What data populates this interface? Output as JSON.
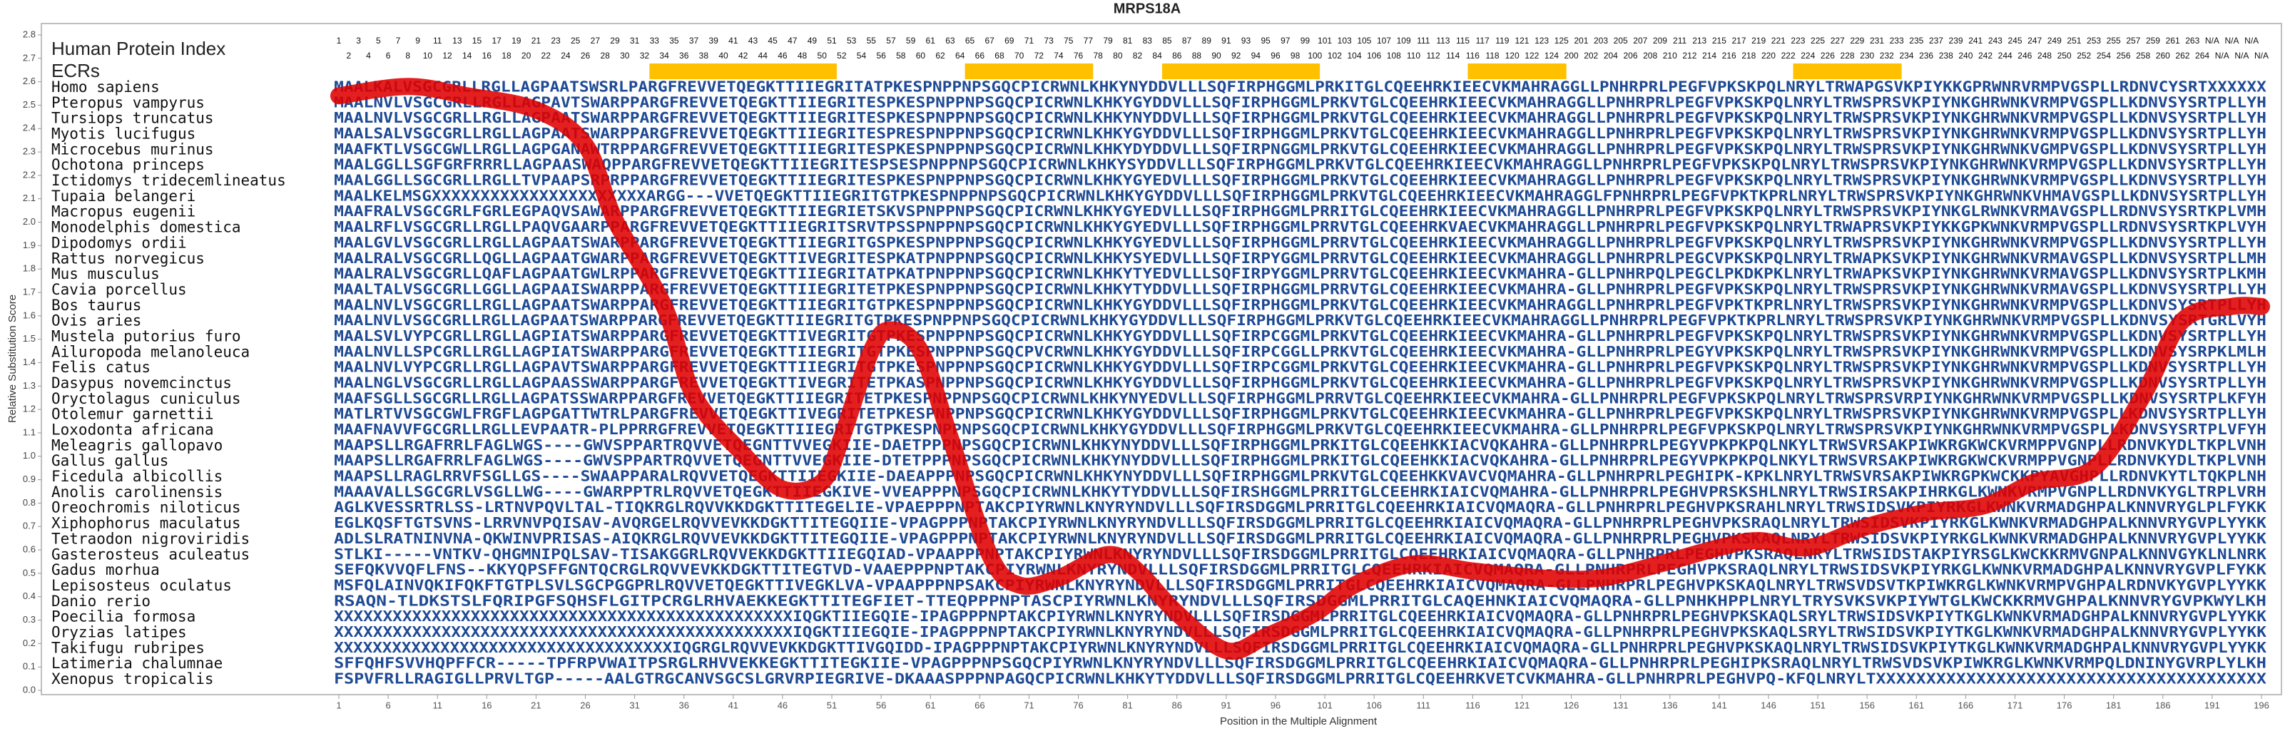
{
  "chart_data": {
    "type": "line",
    "title": "MRPS18A",
    "ylabel": "Relative Substitution Score",
    "xlabel": "Position in the Multiple Alignment",
    "index_label": "Human Protein Index",
    "ecr_label": "ECRs",
    "color": "#e00000",
    "ecr_color": "#ffc000",
    "xlim": [
      1,
      196
    ],
    "ylim": [
      0,
      2.8
    ],
    "xticks": [
      1,
      6,
      11,
      16,
      21,
      26,
      31,
      36,
      41,
      46,
      51,
      56,
      61,
      66,
      71,
      76,
      81,
      86,
      91,
      96,
      101,
      106,
      111,
      116,
      121,
      126,
      131,
      136,
      141,
      146,
      151,
      156,
      161,
      166,
      171,
      176,
      181,
      186,
      191,
      196
    ],
    "yticks": [
      {
        "value": 0,
        "label": "0.0"
      },
      0.1,
      0.2,
      0.3,
      0.4,
      0.5,
      0.6,
      0.7,
      0.8,
      0.9,
      {
        "value": 1,
        "label": "1.0"
      },
      1.1,
      1.2,
      1.3,
      1.4,
      1.5,
      1.6,
      1.7,
      1.8,
      1.9,
      {
        "value": 2,
        "label": "2.0"
      },
      2.1,
      2.2,
      2.3,
      2.4,
      2.5,
      2.6,
      2.7,
      2.8
    ],
    "x": [
      1,
      8,
      14,
      21,
      26,
      29,
      34,
      37,
      42,
      46,
      50,
      52,
      55,
      57,
      60,
      63,
      67,
      70,
      74,
      79,
      82,
      86,
      91,
      95,
      100,
      104,
      110,
      116,
      123,
      129,
      135,
      141,
      145,
      150,
      156,
      162,
      168,
      173,
      179,
      184,
      188,
      193,
      196
    ],
    "values": [
      2.54,
      2.58,
      2.54,
      2.48,
      2.33,
      2.01,
      1.64,
      1.26,
      1.01,
      0.86,
      0.89,
      1.08,
      1.45,
      1.54,
      1.45,
      1.08,
      0.58,
      0.45,
      0.48,
      0.58,
      0.51,
      0.33,
      0.17,
      0.23,
      0.33,
      0.45,
      0.54,
      0.51,
      0.48,
      0.48,
      0.54,
      0.61,
      0.64,
      0.61,
      0.7,
      0.76,
      0.79,
      0.89,
      0.95,
      1.26,
      1.58,
      1.64,
      1.64
    ],
    "ecrs": [
      {
        "start": 33,
        "end": 51
      },
      {
        "start": 65,
        "end": 77
      },
      {
        "start": 85,
        "end": 100
      },
      {
        "start": 116,
        "end": 125
      },
      {
        "start": 149,
        "end": 159
      }
    ],
    "human_index": [
      1,
      2,
      3,
      4,
      5,
      6,
      7,
      8,
      9,
      10,
      11,
      12,
      13,
      14,
      15,
      16,
      17,
      18,
      19,
      20,
      21,
      22,
      23,
      24,
      25,
      26,
      27,
      28,
      29,
      30,
      31,
      32,
      33,
      34,
      35,
      36,
      37,
      38,
      39,
      40,
      41,
      42,
      43,
      44,
      45,
      46,
      47,
      48,
      49,
      50,
      51,
      52,
      53,
      54,
      55,
      56,
      57,
      58,
      59,
      60,
      61,
      62,
      63,
      64,
      65,
      66,
      67,
      68,
      69,
      70,
      71,
      72,
      73,
      74,
      75,
      76,
      77,
      78,
      79,
      80,
      81,
      82,
      83,
      84,
      85,
      86,
      87,
      88,
      89,
      90,
      91,
      92,
      93,
      94,
      95,
      96,
      97,
      98,
      99,
      100,
      101,
      102,
      103,
      104,
      105,
      106,
      107,
      108,
      109,
      110,
      111,
      112,
      113,
      114,
      115,
      116,
      117,
      118,
      119,
      120,
      121,
      122,
      123,
      124,
      125,
      200,
      201,
      202,
      203,
      204,
      205,
      206,
      207,
      208,
      209,
      210,
      211,
      212,
      213,
      214,
      215,
      216,
      217,
      218,
      219,
      220,
      221,
      222,
      223,
      224,
      225,
      226,
      227,
      228,
      229,
      230,
      231,
      232,
      233,
      234,
      235,
      236,
      237,
      238,
      239,
      240,
      241,
      242,
      243,
      244,
      245,
      246,
      247,
      248,
      249,
      250,
      251,
      252,
      253,
      254,
      255,
      256,
      257,
      258,
      259,
      260,
      261,
      262,
      263,
      264,
      "N/A",
      "N/A",
      "N/A",
      "N/A",
      "N/A",
      "N/A"
    ],
    "species": [
      "Homo sapiens",
      "Pteropus vampyrus",
      "Tursiops truncatus",
      "Myotis lucifugus",
      "Microcebus murinus",
      "Ochotona princeps",
      "Ictidomys tridecemlineatus",
      "Tupaia belangeri",
      "Macropus eugenii",
      "Monodelphis domestica",
      "Dipodomys ordii",
      "Rattus norvegicus",
      "Mus musculus",
      "Cavia porcellus",
      "Bos taurus",
      "Ovis aries",
      "Mustela putorius furo",
      "Ailuropoda melanoleuca",
      "Felis catus",
      "Dasypus novemcinctus",
      "Oryctolagus cuniculus",
      "Otolemur garnettii",
      "Loxodonta africana",
      "Meleagris gallopavo",
      "Gallus gallus",
      "Ficedula albicollis",
      "Anolis carolinensis",
      "Oreochromis niloticus",
      "Xiphophorus maculatus",
      "Tetraodon nigroviridis",
      "Gasterosteus aculeatus",
      "Gadus morhua",
      "Lepisosteus oculatus",
      "Danio rerio",
      "Poecilia formosa",
      "Oryzias latipes",
      "Takifugu rubripes",
      "Latimeria chalumnae",
      "Xenopus tropicalis"
    ],
    "sequences": [
      "MAALKALVSGCGRLLRGLLAGPAATSWSRLPARGFREVVETQEGKTTIIEGRITATPKESPNPPNPSGQCPICRWNLKHKYNYDDVLLLSQFIRPHGGMLPRKITGLCQEEHRKIEECVKMAHRAGGLLPNHRPRLPEGFVPKSKPQLNRYLTRWAPGSVKPIYKKGPRWNRVRMPVGSPLLRDNVCYSRTXXXXXX",
      "MAALNVLVSGCGRLLRGLLAGPAVTSWARPPARGFREVVETQEGKTTIIEGRITESPKESPNPPNPSGQCPICRWNLKHKYGYDDVLLLSQFIRPHGGMLPRKVTGLCQEEHRKIEECVKMAHRAGGLLPNHRPRLPEGFVPKSKPQLNRYLTRWSPRSVKPIYNKGHRWNKVRMPVGSPLLKDNVSYSRTPLLYH",
      "MAALNVLVSGCGRLLRGLLAGPAATSWARPPARGFREVVETQEGKTTIIEGRITESPKESPNPPNPSGQCPICRWNLKHKYNYDDVLLLSQFIRPHGGMLPRKVTGLCQEEHRKIEECVKMAHRAGGLLPNHRPRLPEGFVPKSKPQLNRYLTRWSPRSVKPIYNKGHRWNKVRMPVGSPLLKDNVSYSRTPLLYH",
      "MAALSALVSGCGRLLRGLLAGPAATSWARPPARGFREVVETQEGKTTIIEGRITESPRESPNPPNPSGQCPICRWNLKHKYGYDDVLLLSQFIRPHGGMLPRKVTGLCQEEHRKIEECVKMAHRAGGLLPNHRPRLPEGFVPKSKPQLNRYLTRWSPRSVKPIYNKGHRWNKVRMPVGSPLLKDNVSYSRTPLLYH",
      "MAAFKTLVSGCGWLLRGLLAGPGANAWTRPPARGFREVVETQEGKTTIIEGRITESPKESPNPPNPSGQCPICRWNLKHKYDYDDVLLLSQFIRPNGGMLPRKVTGLCQEEHRKIEECVKMAHRAGGLLPNHRPRLPEGFVPKSKPQLNRYLTRWSPRSVKPIYNKGHRWNKVGMPVGSPLLKDNVSYSRTPLLYH",
      "MAALGGLLSGFGRFRRRLLAGPAASWAQPPARGFREVVETQEGKTTIIEGRITESPSESPNPPNPSGQCPICRWNLKHKYSYDDVLLLSQFIRPHGGMLPRKVTGLCQEEHRKIEECVKMAHRAGGLLPNHRPRLPEGFVPKSKPQLNRYLTRWSPRSVKPIYNKGHRWNKVRMPVGSPLLKDNVSYSRTPLLYH",
      "MAALGGLLSGCGRLLRGLLTVPAAPSRPRPPARGFREVVETQEGKTTIIEGRITESPKESPNPPNPSGQCPICRWNLKHKYGYEDVLLLSQFIRPHGGMLPRKVTGLCQEEHRKIEECVKMAHRAGGLLPNHRPRLPEGFVPKSKPQLNRYLTRWSPRSVKPIYNKGHRWNKVRMPVGSPLLKDNVSYSRTPLLYH",
      "MAALKELMSGXXXXXXXXXXXXXXXXXXXXXXARGG---VVETQEGKTTIIEGRITGTPKESPNPPNPSGQCPICRWNLKHKYGYDDVLLLSQFIRPHGGMLPRKVTGLCQEEHRKIEECVKMAHRAGGLFPNHRPRLPEGFVPKTKPRLNRYLTRWSPRSVKPIYNKGHRWNKVHMAVGSPLLKDNVSYSRTPLLYH",
      "MAAFRALVSGCGRLFGRLEGPAQVSAWARPPARGFREVVETQEGKTTIIEGRIETSKVSPNPPNPSGQCPICRWNLKHKYGYEDVLLLSQFIRPHGGMLPRRITGLCQEEHRKIEECVKMAHRAGGLLPNHRPRLPEGFVPKSKPQLNRYLTRWSPRSVKPIYNKGLRWNKVRMAVGSPLLRDNVSYSRTKPLVMH",
      "MAALRFLVSGCGRLLRGLLPAQVGAARPPARGFREVVETQEGKTTIIEGRITSRVTPSSPNPPNPSGQCPICRWNLKHKYGYEDVLLLSQFIRPHGGMLPRRVTGLCQEEHRKVAECVKMAHRAGGLLPNHRPRLPEGFVPKSKPQLNRYLTRWAPRSVKPIYKKGPKWNKVRMPVGSPLLRDNVSYSRTKPLVYH",
      "MAALGVLVSGCGRLLRGLLAGPAATSWARPPARGFREVVETQEGKTTIIEGRITGSPKESPNPPNPSGQCPICRWNLKHKYGYEDVLLLSQFIRPHGGMLPRRVTGLCQEEHRKIEECVKMAHRAGGLLPNHRPRLPEGFVPKSKPQLNRYLTRWSPRSVKPIYNKGHRWNKVRMPVGSPLLKDNVSYSRTPLLYH",
      "MAALRALVSGCGRLLQGLLAGPAATGWARPPARGFREVVETQEGKTTIVEGRITESPKATPNPPNPSGQCPICRWNLKHKYSYEDVLLLSQFIRPYGGMLPRRVTGLCQEEHRKIEECVKMAHRAGGLLPNHRPRLPEGCVPKSKPQLNRYLTRWAPKSVKPIYNKGHRWNKVRMAVGSPLLKDNVSYSRTPLLMH",
      "MAALRALVSGCGRLLQAFLAGPAATGWLRPPARGFREVVETQEGKTTIIEGRITATPKATPNPPNPSGQCPICRWNLKHKYTYEDVLLLSQFIRPYGGMLPRRVTGLCQEEHRKIEECVKMAHRA-GLLPNHRPQLPEGCLPKDKPKLNRYLTRWAPKSVKPIYNKGHRWNKVRMAVGSPLLKDNVSYSRTPLKMH",
      "MAALTALVSGCGRLLGGLLAGPAAISWARPPARGFREVVETQEGKTTIIEGRITETPKESPNPPNPSGQCPICRWNLKHKYTYDDVLLLSQFIRPHGGMLPRRVTGLCQEEHRKIEECVKMAHRA-GLLPNHRPRLPEGFVPKSKPQLNRYLTRWSPRSVKPIYNKGHRWNKVRMAVGSPLLKDNVSYSRTPLLYH",
      "MAALNVLVSGCGRLLRGLLAGPAATSWARPPARGFREVVETQEGKTTIIEGRITGTPKESPNPPNPSGQCPICRWNLKHKYGYDDVLLLSQFIRPHGGMLPRKVTGLCQEEHRKIEECVKMAHRAGGLLPNHRPRLPEGFVPKTKPRLNRYLTRWSPRSVKPIYNKGHRWNKVRMPVGSPLLKDNVSYSRTPLLYH",
      "MAALNVLVSGCGRLLRGLLAGPAATSWARPPARGFREVVETQEGKTTIIEGRITGTPKESPNPPNPSGQCPICRWNLKHKYGYDDVLLLSQFIRPHGGMLPRKVTGLCQEEHRKIEECVKMAHRAGGLLPNHRPRLPEGFVPKTKPRLNRYLTRWSPRSVKPIYNKGHRWNKVRMPVGSPLLKDNVSYSRTGRLVYH",
      "MAALSVLVYPCGRLLRGLLAGPIATSWARPPARGFREVVETQEGKTTIVEGRITGTPKESPNPPNPSGQCPICRWNLKHKYGYDDVLLLSQFIRPCGGMLPRKVTGLCQEEHRKIEECVKMAHRA-GLLPNHRPRLPEGFVPKSKPQLNRYLTRWSPRSVKPIYNKGHRWNKVRMPVGSPLLKDNVSYSRTPLLYH",
      "MAALNVLLSPCGRLLRGLLAGPIATSWARPPARGFREVVETQEGKTTIIEGRITGTPKESPNPPNPSGQCPVCRWNLKHKYGYDDVLLLSQFIRPCGGLLPRKVTGLCQEEHRKIEECVKMAHRA-GLLPNHRPRLPEGYVPKSKPQLNRYLTRWSPRSVKPIYNKGHRWNKVRMPVGSPLLKDNVSYSRPKLMLH",
      "MAALNVLVYPCGRLLRGLLAGPAVTSWARPPARGFREVVETQEGKTTIIEGRITGTPKESPNPPNPSGQCPICRWNLKHKYGYDDVLLLSQFIRPCGGMLPRKVTGLCQEEHRKIEECVKMAHRA-GLLPNHRPRLPEGFVPKSKPQLNRYLTRWSPRSVKPIYNKGHRWNKVRMPVGSPLLKDNVSYSRTPLLYH",
      "MAALNGLVSGCGRLLRGLLAGPAASSWARPPARGFREVVETQEGKTTIVEGRITETPKASPNPPNPSGQCPICRWNLKHKYGYDDVLLLSQFIRPHGGMLPRKVTGLCQEEHRKIEECVKMAHRA-GLLPNHRPRLPEGFVPKSKPQLNRYLTRWSPRSVKPIYNKGHRWNKVRMPVGSPLLKDNVSYSRTPLLYH",
      "MAAFSGLLSGCGRLLRGLLAGPATSSWARPPARGFREVVETQEGKTTIIEGRITETPKESPNPPNPSGQCPICRWNLKHKYNYEDVLLLSQFIRPHGGMLPRRVTGLCQEEHRKIEECVKMAHRA-GLLPNHRPRLPEGFVPKSKPQLNRYLTRWSPRSVRPIYNKGHRWNKVRMPVGSPLLKDNVSYSRTPLKFYH",
      "MATLRTVVSGCGWLFRGFLAGPGATTWTRLPARGFREVVETQEGKTTIVEGRITETPKESPNPPNPSGQCPICRWNLKHKYGYDDVLLLSQFIRPHGGMLPRKVTGLCQEEHRKIEECVKMAHRA-GLLPNHRPRLPEGFVPKSKPQLNRYLTRWSPRSVKPIYNKGHRWNKVRMPVGSPLLKDNVSYSRTPLLYH",
      "MAAFNAVVFGCGRLLRGLLEVPAATR-PLPPRRGFREVVETQEGKTTIIEGRITGTPKESPNPPNPSGQCPICRWNLKHKYGYDDVLLLSQFIRPHGGMLPRKVTGLCQEEHRKIEECVKMAHRA-GLLPNHRPRLPEGFVPKSKPQLNRYLTRWSPRSVKPIYNKGHRWNKVRMPVGSPLLKDNVSYSRTPLVFYH",
      "MAAPSLLRGAFRRLFAGLWGS----GWVSPPARTRQVVETQEGNTTVVEGKIIE-DAETPPPNPSGQCPICRWNLKHKYNYDDVLLLSQFIRPHGGMLPRKITGLCQEEHKKIACVQKAHRA-GLLPNHRPRLPEGYVPKPKPQLNKYLTRWSVRSAKPIWKRGKWCKVRMPPVGNPLLRDNVKYDLTKPLVNH",
      "MAAPSLLRGAFRRLFAGLWGS----GWVSPPARTRQVVETQEGNTTVVEGKIIE-DTETPPPNPSGQCPICRWNLKHKYNYDDVLLLSQFIRPHGGMLPRKITGLCQEEHKKIACVQKAHRA-GLLPNHRPRLPEGYVPKPKPQLNKYLTRWSVRSAKPIWKRGKWCKVRMPPVGNPLLRDNVKYDLTKPLVNH",
      "MAAPSLLRAGLRRVFSGLLGS----SWAAPPARALRQVVETQEGKTTIIEGKIIE-DAEAPPPNPSGQCPICRWNLKHKYNYDDVLLLSQFIRPHGGMLPRKVTGLCQEEHKKVAVCVQMAHRA-GLLPNHRPRLPEGHIPK-KPKLNRYLTRWSVRSAKPIWKRGPKWCKKPYAVGHPLLRDNVKYTLTQKPLNH",
      "MAAAVALLSGCGRLVSGLLWG----GWARPPTRLRQVVETQEGKTTIIEGKIVE-VVEAPPPNPSGQCPICRWNLKHKYTYDDVLLLSQFIRSHGGMLPRRITGLCEEHRKIAICVQMAHRA-GLLPNHRPRLPEGHVPRSKSHLNRYLTRWSIRSAKPIHRKGLKWNKVRMPVGNPLLRDNVKYGLTRPLVRH",
      "AGLKVESSRTRLSS-LRTNVPQVLTAL-TIQKRGLRQVVKKDGKTTITEGELIE-VPAEPPPNPTAKCPIYRWNLKNYRYNDVLLLSQFIRSDGGMLPRRITGLCQEEHRKIAICVQMAQRA-GLLPNHRPRLPEGHVPKSRAHLNRYLTRWSIDSVKPIYRKGLKWNKVRMADGHPALKNNVRYGLPLFYKK",
      "EGLKQSFTGTSVNS-LRRVNVPQISAV-AVQRGELRQVVEVKKDGKTTITEGQIIE-VPAGPPPNPTAKCPIYRWNLKNYRYNDVLLLSQFIRSDGGMLPRRITGLCQEEHRKIAICVQMAQRA-GLLPNHRPRLPEGHVPKSRAQLNRYLTRWSIDSVKPIYRKGLKWNKVRMADGHPALKNNVRYGVPLYYKK",
      "ADLSLRATNINVNA-QKWINVPRISAS-AIQKRGLRQVVEVKKDGKTTITEGQIIE-VPAGPPPNPTAKCPIYRWNLKNYRYNDVLLLSQFIRSDGGMLPRRITGLCQEEHRKIAICVQMAQRA-GLLPNHRPRLPEGHVPKSKAQLNRYLTRWSIDSVKPIYRKGLKWNKVRMADGHPALKNNVRYGVPLYYKK",
      "STLKI-----VNTKV-QHGMNIPQLSAV-TISAKGGRLRQVVEKKDGKTTIIEGQIAD-VPAAPPPNPTAKCPIYRWNLKNYRYNDVLLLSQFIRSDGGMLPRRITGLCQEEHRKIAICVQMAQRA-GLLPNHRPRLPEGHVPKSRAQLNRYLTRWSIDSTAKPIYRSGLKWCKKRMVGNPALKNNVGYKLNLNRK",
      "SEFQKVVQFLFNS--KKYQPSFFGNTQCRGLRQVVEVKKDGKTTITEGTVD-VAAEPPPNPTAKCPIYRWNLKNYRYNDVLLLSQFIRSDGGMLPRRITGLCQEEHRKIAICVQMAQRA-GLLPNHRPRLPEGHVPKSRAQLNRYLTRWSIDSVKPIYRKGLKWNKVRMADGHPALKNNVRYGVPLFYKK",
      "MSFQLAINVQKIFQKFTGTPLSVLSGCPGGPRLRQVVETQEGKTTIVEGKLVA-VPAAPPPNPSAKCPIYRWNLKNYRYNDVLLLSQFIRSDGGMLPRRITGLCQEEHRKIAICVQMAQRA-GLLPNHRPRLPEGHVPKSKAQLNRYLTRWSVDSVTKPIWKRGLKWNKVRMPVGHPALRDNVKYGVPLYYKK",
      "RSAQN-TLDKSTSLFQRIPGFSQHSFLGITPCRGLRHVAEKKEGKTTITEGFIET-TTEQPPPNPTASCPIYRWNLKNYRYNDVLLLSQFIRSDGGMLPRRITGLCAQEHNKIAICVQMAQRA-GLLPNHKHPPLNRYLTRYSVKSVKPIYWTGLKWCKKRMVGHPALKNNVRYGVPKWYLKH",
      "XXXXXXXXXXXXXXXXXXXXXXXXXXXXXXXXXXXXXXXXXXXXXXXIQGKTIIEGQIE-IPAGPPPNPTAKCPIYRWNLKNYRYNDVLLLSQFIRSDGGMLPRRITGLCQEEHRKIAICVQMAQRA-GLLPNHRPRLPEGHVPKSKAQLSRYLTRWSIDSVKPIYTKGLKWNKVRMADGHPALKNNVRYGVPLYYKK",
      "XXXXXXXXXXXXXXXXXXXXXXXXXXXXXXXXXXXXXXXXXXXXXXXIQGKTIIEGQIE-IPAGPPPNPTAKCPIYRWNLKNYRYNDVLLLSQFIRSDGGMLPRRITGLCQEEHRKIAICVQMAQRA-GLLPNHRPRLPEGHVPKSKAQLSRYLTRWSIDSVKPIYTKGLKWNKVRMADGHPALKNNVRYGVPLYYKK",
      "XXXXXXXXXXXXXXXXXXXXXXXXXXXXXXXXXXXIQGRGLRQVVEVKKDGKTTIVGQIDD-IPAGPPPNPTAKCPIYRWNLKNYRYNDVLLLSQFIRSDGGMLPRRITGLCQEEHRKIAICVQMAQRA-GLLPNHRPRLPEGHVPKSKAQLNRYLTRWSIDSVKPIYTKGLKWNKVRMADGHPALKNNVRYGVPLYYKK",
      "SFFQHFSVVHQPFFCR-----TPFRPVWAITPSRGLRHVVEKKEGKTTITEGKIIE-VPAGPPPNPSGQCPIYRWNLKNYRYNDVLLLSQFIRSDGGMLPRRITGLCQEEHRKIAICVQMAQRA-GLLPNHRPRLPEGHIPKSRAQLNRYLTRWSVDSVKPIWKRGLKWNKVRMPQLDNINYGVRPLYLKH",
      "FSPVFRLLRAGIGLLPRVLTGP-----AALGTRGCANVSGCSLGRVRPIEGRIVE-DKAAASPPPNPAGQCPICRWNLKHKYTYDDVLLLSQFIRSDGGMLPRRITGLCQEEHRKVETCVKMAHRA-GLLPNHRPRLPEGHVPQ-KFQLNRYLTXXXXXXXXXXXXXXXXXXXXXXXXXXXXXXXXXXXXXXX"
    ]
  }
}
